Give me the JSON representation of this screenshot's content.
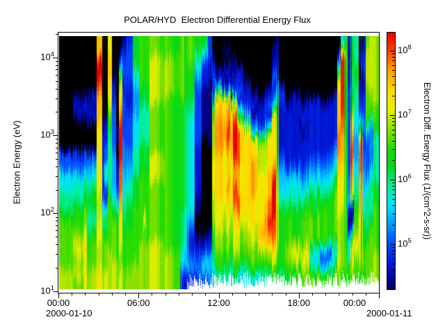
{
  "chart_data": {
    "type": "heatmap",
    "title": "POLAR/HYD  Electron Differential Energy Flux",
    "x_axis": {
      "tick_labels": [
        "00:00",
        "06:00",
        "12:00",
        "18:00",
        "00:00"
      ],
      "start_date": "2000-01-10",
      "end_date": "2000-01-11",
      "hours_span": 24,
      "major_tick_hours": 6,
      "minor_tick_hours": 1
    },
    "y_axis": {
      "label": "Electron Energy (eV)",
      "tick_base": "10",
      "tick_exponents": [
        1,
        2,
        3,
        4
      ],
      "log10_range": [
        0.98,
        4.32
      ],
      "scale": "log"
    },
    "colorbar": {
      "label": "Electron Diff. Energy Flux (1/(cm^2-s-sr))",
      "tick_base": "10",
      "tick_exponents": [
        5,
        6,
        7,
        8
      ],
      "log10_range": [
        4.3,
        8.28
      ]
    },
    "palette": [
      "#000000",
      "#000088",
      "#0018D8",
      "#0048FF",
      "#0098FF",
      "#00E0FF",
      "#00F0A0",
      "#00D820",
      "#28DC00",
      "#90E000",
      "#E8F000",
      "#FFD800",
      "#FFA000",
      "#FF4000",
      "#E60000"
    ],
    "value_encoding": {
      "description": "Each grid column string = one time slice, top(high energy) to bottom(low energy). char 0=no flux (black), 1..9,a..e = increasing flux level, x = no measurement (white).",
      "log10_flux_of_level": "4.1 + 0.3 * level"
    },
    "grid": {
      "cols": 92,
      "rows": 26,
      "columns": [
        "00000000000033556678888899",
        "00000000000033556678888899",
        "00000000000033556678888899",
        "00000000000033556678888899",
        "000000121000335667889aa9a9",
        "000000121000335667889aa9a9",
        "000000121000335667889aa9a9",
        "000000121000335667889aa9a9",
        "00000021200034567766788899",
        "00000021200034567766788899",
        "00000021200034567766788899",
        "bbdedcbbbaaaaaaa999aa999aa",
        "00000000112223323566888899",
        "00000000122335532466788899",
        "aabbbaa9876666667888889999",
        "00001223333344445678888999",
        "00000000011012234678888999",
        "01369abcdeeeedddccbbaa99aa",
        "12333233333444556677888899",
        "23333222333344566777888899",
        "23333222333344566777888899",
        "77765444555666777888888999",
        "77765444555666777888888999",
        "88888776666777888888899999",
        "888887766667778888aa899999",
        "88888776666777888888899999",
        "88999998888899988888899999",
        "88999998888899988888899999",
        "88999998888899988888899999",
        "88999998888899988888899999",
        "88999988888888888888889999",
        "88999988888888888888889999",
        "88999988888888888888889999",
        "88999988888888888888889999",
        "88999988888888888888889999",
        "88888887777777777766665532",
        "88888887777777777766665532",
        "8887776655555555554322342x",
        "8887776655555555554322342x",
        "8765433333322222110012343x",
        "8765433333322222110012343x",
        "7532211111000000000012453x",
        "7532211111000000000012453x",
        "3322111111100000000123554x",
        "00233258aaaabbbbaaa988765x",
        "000126bbccccbbbbbaaa99886x",
        "000126bbccccbbbbbaaa99886x",
        "010213bccddcbbbcbbaa99886x",
        "010213bccddcbbbcbbaa99886x",
        "0011228bcdddcbbccbaa99876x",
        "0011228bcdddcbbccbaa99876x",
        "000223268ccccbbbccba99875x",
        "000223268ccccbbbccba99875x",
        "000012236abbbbbbbbaa99875x",
        "000012236abbbbbbbbaa99875x",
        "0000012135aabbbbaaa998875x",
        "0000012135aabbbbaaa998875x",
        "00000012238aaabbbbbccb986x",
        "00000012238aaabbbbbccb986x",
        "00000123259aaabbbccdcb986x",
        "00000123259aaabbbccdcb986x",
        "01123235aaaaabcddddccba97x",
        "122335689999999aaabbba987x",
        "0000023222223455678888887x",
        "0000023222223455678888887x",
        "0000001222222355678889987x",
        "0000001222222355678889987x",
        "000000222222235667888aba8x",
        "000000222222235667888aba8x",
        "0000001221222345678889a98x",
        "0000001221222345678889a98x",
        "0000001221222345678889a98x",
        "0000002222223456778886568x",
        "0000002222223456778886568x",
        "0000002222223456778886568x",
        "0000001222223456788885358x",
        "0000001222223456788885358x",
        "0000001222223456788885358x",
        "0000002222234567888886568x",
        "0000002222234567888886568x",
        "0258abbbbcccbbaaaa9999a98x",
        "5beeeeeeddcccbbbaa9999998x",
        "8999888888888888888888998x",
        "2222233333333344521256688x",
        "677666789abccbbaa21379aa8x",
        "666776665544455667889a988x",
        "0110112368cdddccccbbaaa98x",
        "2233223344334455667888998x",
        "8999988875333345666678888x",
        "9999998864343456656788888x",
        "9999999887666667788888999x",
        "9999999887666667788888999x"
      ]
    }
  }
}
